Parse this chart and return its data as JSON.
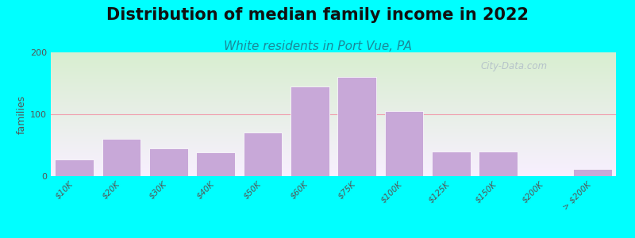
{
  "title": "Distribution of median family income in 2022",
  "subtitle": "White residents in Port Vue, PA",
  "categories": [
    "$10K",
    "$20K",
    "$30K",
    "$40K",
    "$50K",
    "$60K",
    "$75K",
    "$100K",
    "$125K",
    "$150K",
    "$200K",
    "> $200K"
  ],
  "values": [
    27,
    60,
    45,
    38,
    70,
    145,
    160,
    105,
    40,
    40,
    0,
    12
  ],
  "bar_color": "#C8A8D8",
  "bar_edge_color": "#FFFFFF",
  "background_color": "#00FFFF",
  "grad_top_color": "#D8EED0",
  "grad_bottom_color": "#F8F0FF",
  "ylabel": "families",
  "ylim": [
    0,
    200
  ],
  "yticks": [
    0,
    100,
    200
  ],
  "grid_color": "#F0A0B0",
  "title_fontsize": 15,
  "subtitle_fontsize": 11,
  "subtitle_color": "#1A8898",
  "watermark": "City-Data.com",
  "watermark_color": "#B0BCC8",
  "tick_label_color": "#555555",
  "tick_label_fontsize": 7.5
}
